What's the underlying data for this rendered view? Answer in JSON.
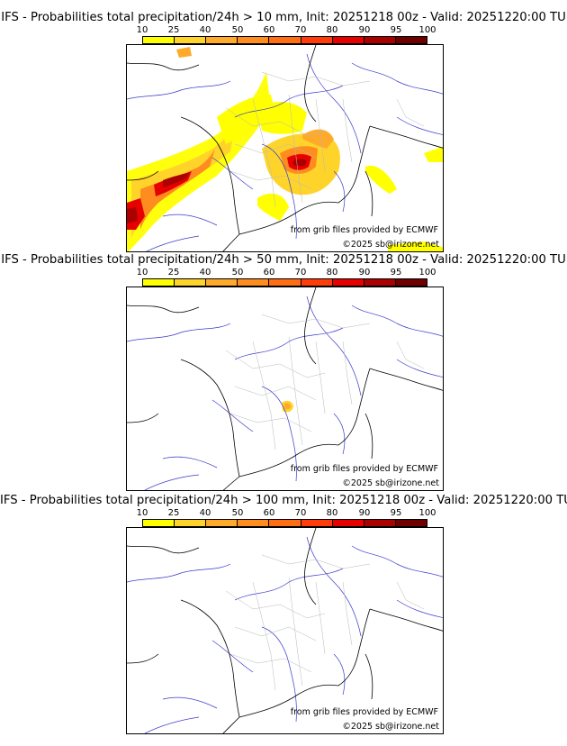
{
  "colorbar": {
    "labels": [
      "10",
      "25",
      "40",
      "50",
      "60",
      "70",
      "80",
      "90",
      "95",
      "100"
    ],
    "colors": [
      "#ffff00",
      "#ffd42a",
      "#ffaa2a",
      "#ff8c1e",
      "#ff6e14",
      "#ff3c0a",
      "#e60000",
      "#aa0000",
      "#6e0000"
    ]
  },
  "panels": [
    {
      "title": "IFS - Probabilities total precipitation/24h > 10 mm, Init: 20251218 00z - Valid: 20251220:00 TU",
      "credit_source": "from grib files provided by ECMWF",
      "credit_copyright": "©2025 sb@irizone.net",
      "precip_areas": "large: northern Spain & Bay of Biscay coast, Massif Central & southern France, Alps/Switzerland, Corsica, Ligurian coast"
    },
    {
      "title": "IFS - Probabilities total precipitation/24h > 50 mm, Init: 20251218 00z - Valid: 20251220:00 TU",
      "credit_source": "from grib files provided by ECMWF",
      "credit_copyright": "©2025 sb@irizone.net",
      "precip_areas": "small: southeastern France near Cévennes"
    },
    {
      "title": "IFS - Probabilities total precipitation/24h > 100 mm, Init: 20251218 00z - Valid: 20251220:00 TU",
      "credit_source": "from grib files provided by ECMWF",
      "credit_copyright": "©2025 sb@irizone.net",
      "precip_areas": "none"
    }
  ]
}
